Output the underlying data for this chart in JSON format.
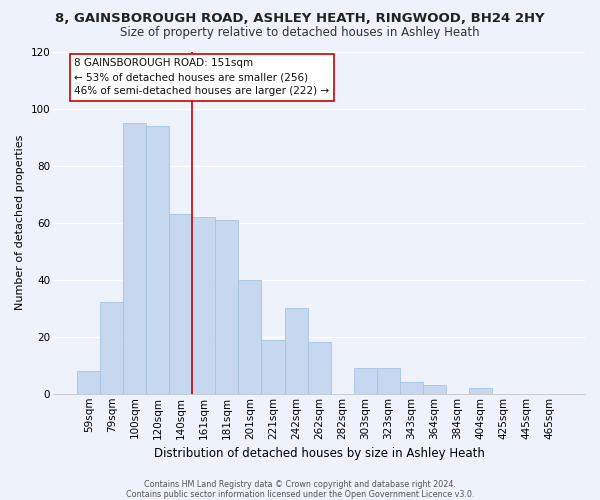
{
  "title": "8, GAINSBOROUGH ROAD, ASHLEY HEATH, RINGWOOD, BH24 2HY",
  "subtitle": "Size of property relative to detached houses in Ashley Heath",
  "xlabel": "Distribution of detached houses by size in Ashley Heath",
  "ylabel": "Number of detached properties",
  "bin_labels": [
    "59sqm",
    "79sqm",
    "100sqm",
    "120sqm",
    "140sqm",
    "161sqm",
    "181sqm",
    "201sqm",
    "221sqm",
    "242sqm",
    "262sqm",
    "282sqm",
    "303sqm",
    "323sqm",
    "343sqm",
    "364sqm",
    "384sqm",
    "404sqm",
    "425sqm",
    "445sqm",
    "465sqm"
  ],
  "bar_heights": [
    8,
    32,
    95,
    94,
    63,
    62,
    61,
    40,
    19,
    30,
    18,
    0,
    9,
    9,
    4,
    3,
    0,
    2,
    0,
    0,
    0
  ],
  "bar_color": "#c5d8f0",
  "bar_edge_color": "#a8c4e0",
  "vline_x": 4.5,
  "vline_color": "#cc0000",
  "ylim": [
    0,
    120
  ],
  "yticks": [
    0,
    20,
    40,
    60,
    80,
    100,
    120
  ],
  "annotation_lines": [
    "8 GAINSBOROUGH ROAD: 151sqm",
    "← 53% of detached houses are smaller (256)",
    "46% of semi-detached houses are larger (222) →"
  ],
  "bg_color": "#eef2fa",
  "plot_bg_color": "#eef2fa",
  "footer_line1": "Contains HM Land Registry data © Crown copyright and database right 2024.",
  "footer_line2": "Contains public sector information licensed under the Open Government Licence v3.0.",
  "title_fontsize": 9.5,
  "subtitle_fontsize": 8.5,
  "xlabel_fontsize": 8.5,
  "ylabel_fontsize": 8,
  "tick_fontsize": 7.5,
  "ann_fontsize": 7.5,
  "footer_fontsize": 5.8
}
